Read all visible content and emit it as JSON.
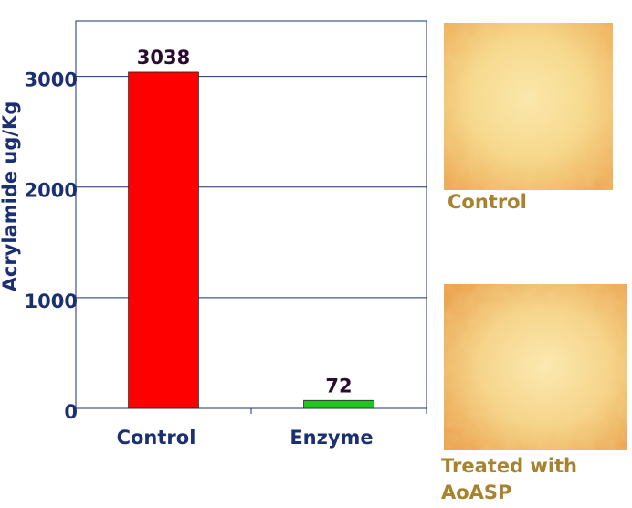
{
  "chart_data": {
    "type": "bar",
    "y_label": "Acrylamide ug/Kg",
    "categories": [
      "Control",
      "Enzyme"
    ],
    "values": [
      3038,
      72
    ],
    "colors": [
      "#ff0000",
      "#22c422"
    ],
    "ylim": [
      0,
      3500
    ],
    "yticks": [
      0,
      1000,
      2000,
      3000
    ],
    "grid": true
  },
  "images": [
    {
      "caption": [
        "Control"
      ]
    },
    {
      "caption": [
        "Treated with",
        "AoASP"
      ]
    }
  ]
}
